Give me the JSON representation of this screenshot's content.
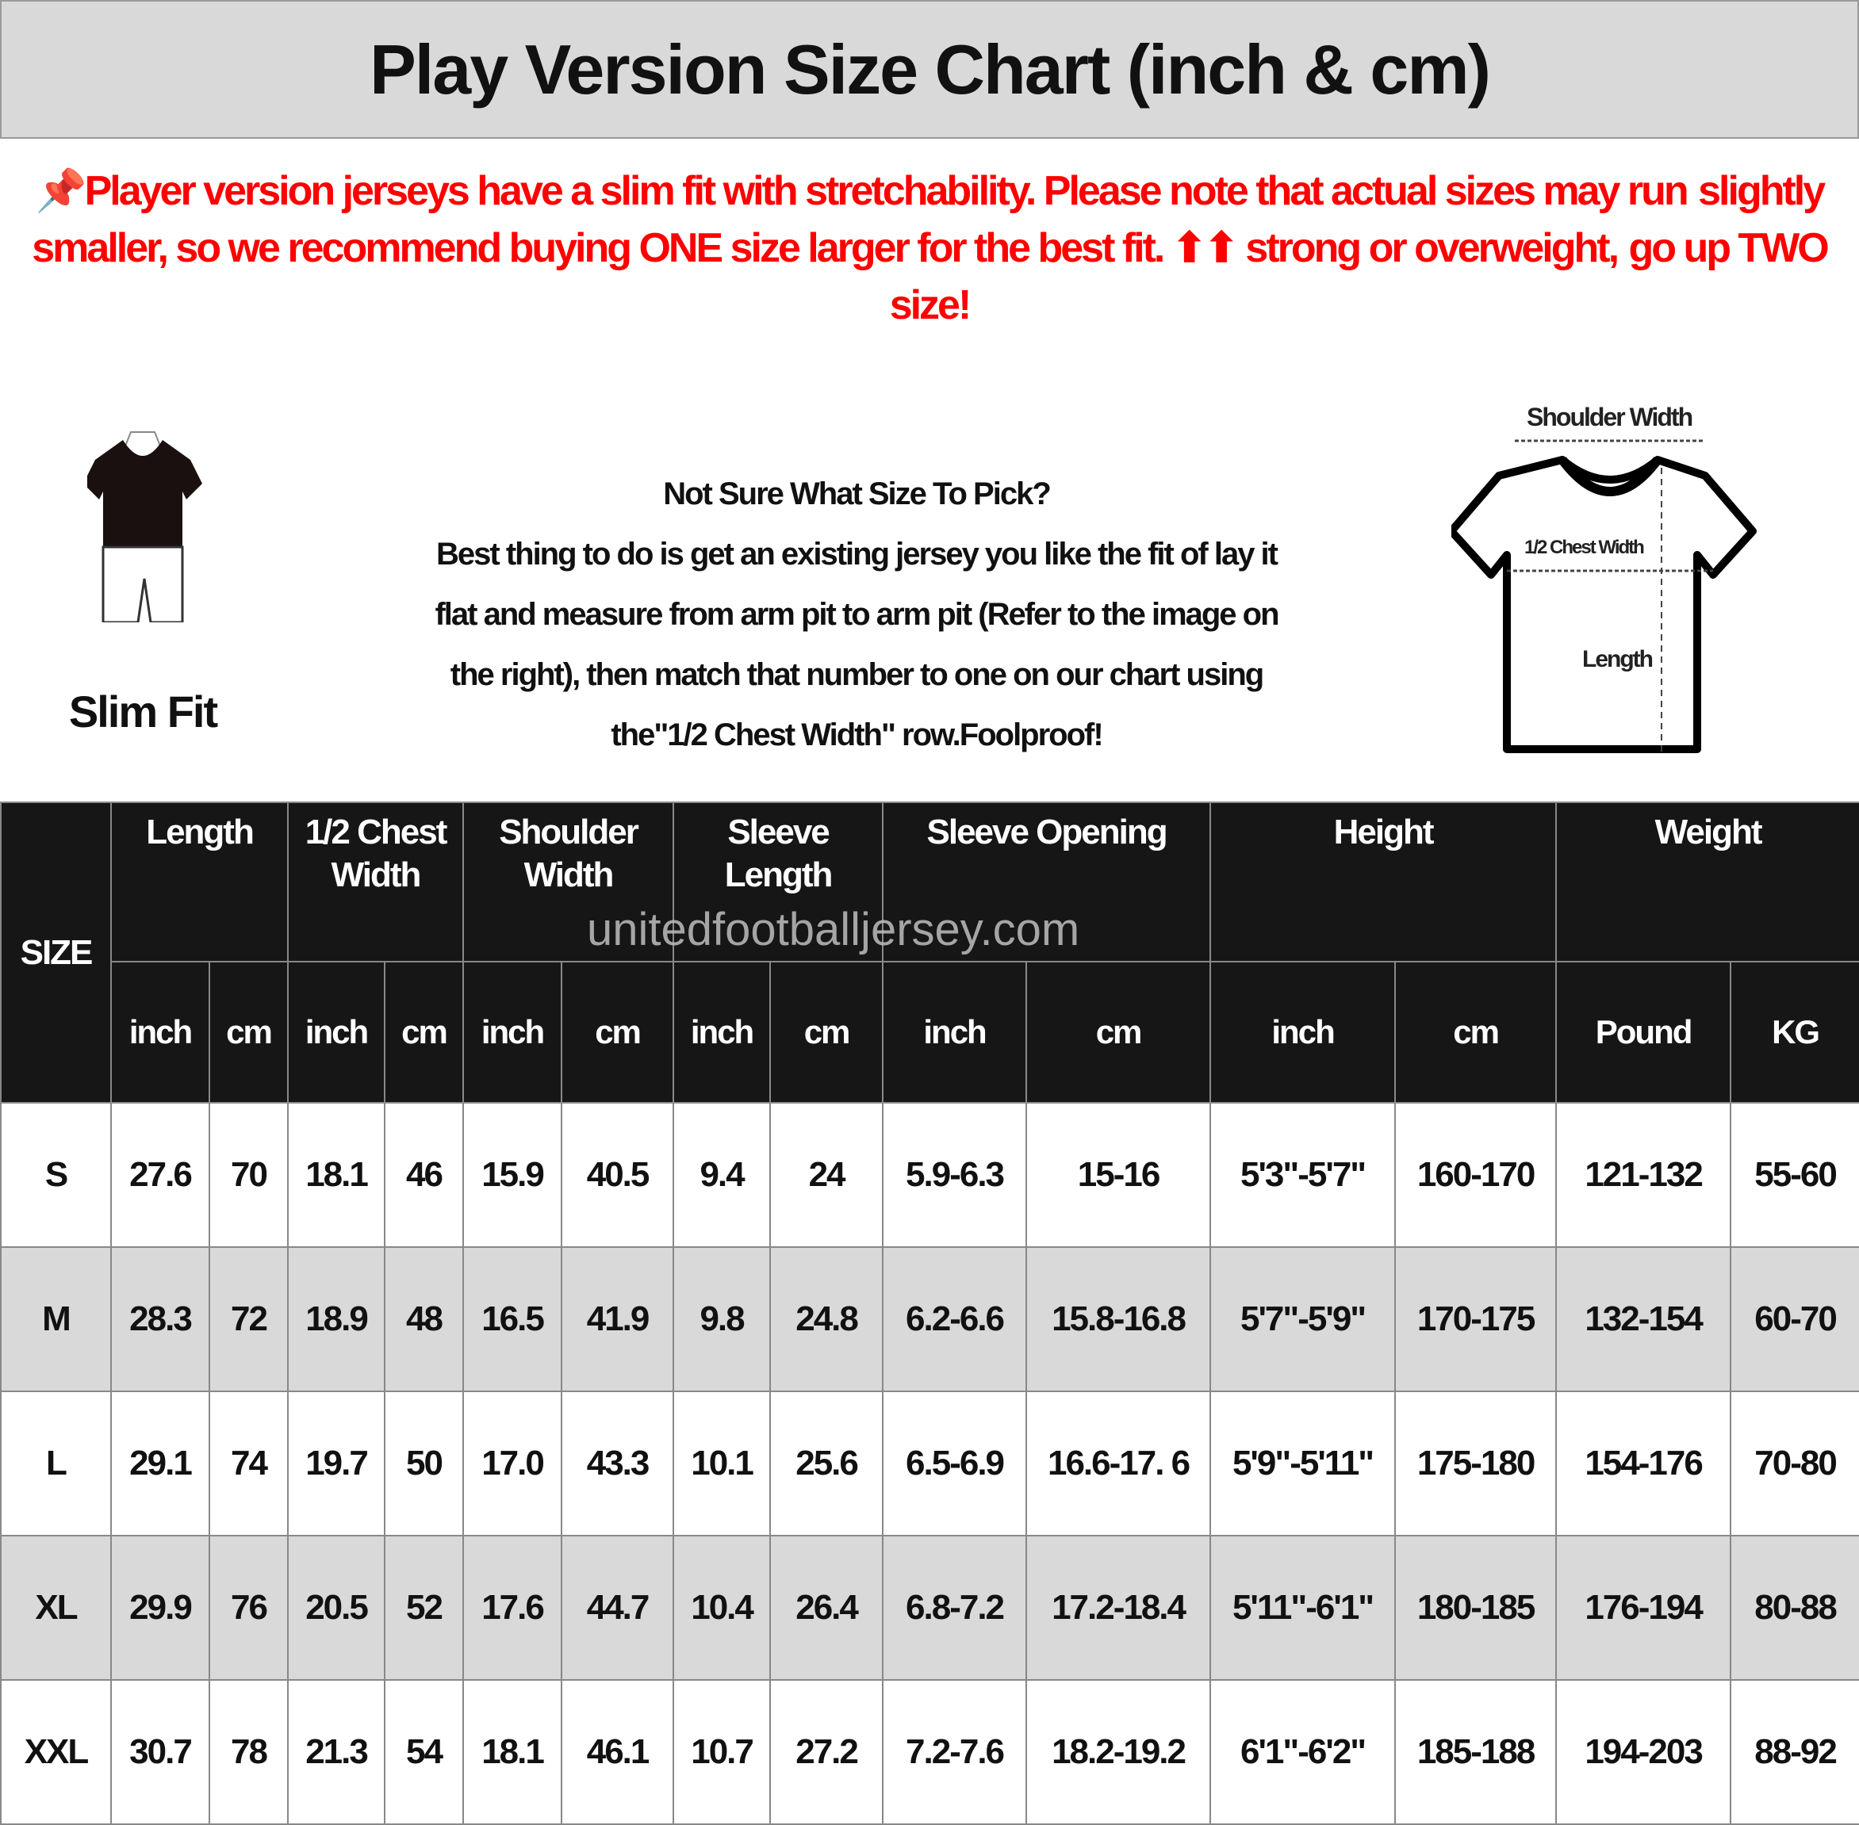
{
  "title": "Play Version Size Chart (inch & cm)",
  "notice_lines": [
    "📌Player version jerseys have a slim fit with stretchability. Please note that actual sizes may run",
    "slightly smaller, so we recommend buying ONE size larger for the best fit. ⬆⬆ strong or overweight,",
    "go up TWO size!"
  ],
  "accent_color": "#ff0000",
  "fit_label": "Slim Fit",
  "guide_lines": [
    "Not Sure What Size To Pick?",
    "Best thing to do is get an existing jersey you like the fit of lay it",
    "flat and measure from arm pit to arm pit (Refer to the image on",
    "the right), then match that number to one on our chart using",
    "the\"1/2 Chest Width\" row.Foolproof!"
  ],
  "diagram": {
    "shoulder": "Shoulder Width",
    "chest": "1/2 Chest Width",
    "length": "Length"
  },
  "watermark": "unitedfootballjersey.com",
  "table": {
    "size_header": "SIZE",
    "groups": [
      "Length",
      "1/2 Chest Width",
      "Shoulder Width",
      "Sleeve Length",
      "Sleeve Opening",
      "Height",
      "Weight"
    ],
    "units": [
      "inch",
      "cm",
      "inch",
      "cm",
      "inch",
      "cm",
      "inch",
      "cm",
      "inch",
      "cm",
      "inch",
      "cm",
      "Pound",
      "KG"
    ],
    "rows": [
      [
        "S",
        "27.6",
        "70",
        "18.1",
        "46",
        "15.9",
        "40.5",
        "9.4",
        "24",
        "5.9-6.3",
        "15-16",
        "5'3\"-5'7\"",
        "160-170",
        "121-132",
        "55-60"
      ],
      [
        "M",
        "28.3",
        "72",
        "18.9",
        "48",
        "16.5",
        "41.9",
        "9.8",
        "24.8",
        "6.2-6.6",
        "15.8-16.8",
        "5'7\"-5'9\"",
        "170-175",
        "132-154",
        "60-70"
      ],
      [
        "L",
        "29.1",
        "74",
        "19.7",
        "50",
        "17.0",
        "43.3",
        "10.1",
        "25.6",
        "6.5-6.9",
        "16.6-17. 6",
        "5'9\"-5'11\"",
        "175-180",
        "154-176",
        "70-80"
      ],
      [
        "XL",
        "29.9",
        "76",
        "20.5",
        "52",
        "17.6",
        "44.7",
        "10.4",
        "26.4",
        "6.8-7.2",
        "17.2-18.4",
        "5'11\"-6'1\"",
        "180-185",
        "176-194",
        "80-88"
      ],
      [
        "XXL",
        "30.7",
        "78",
        "21.3",
        "54",
        "18.1",
        "46.1",
        "10.7",
        "27.2",
        "7.2-7.6",
        "18.2-19.2",
        "6'1\"-6'2\"",
        "185-188",
        "194-203",
        "88-92"
      ]
    ]
  }
}
